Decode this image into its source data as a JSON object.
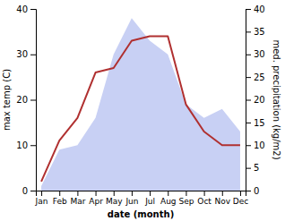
{
  "chart_data": {
    "type": "line",
    "xlabel": "date (month)",
    "ylabel": "max temp (C)",
    "y2label": "med. precipitation (kg/m2)",
    "categories": [
      "Jan",
      "Feb",
      "Mar",
      "Apr",
      "May",
      "Jun",
      "Jul",
      "Aug",
      "Sep",
      "Oct",
      "Nov",
      "Dec"
    ],
    "series": [
      {
        "type": "area",
        "axis": "y2",
        "color": "#c8d0f4",
        "values": [
          1,
          9,
          10,
          16,
          30,
          38,
          33,
          30,
          19,
          16,
          18,
          13
        ]
      },
      {
        "type": "line",
        "color": "#b03030",
        "values": [
          2,
          11,
          16,
          26,
          27,
          33,
          34,
          34,
          19,
          13,
          10,
          10
        ]
      }
    ],
    "ylim": [
      0,
      40
    ],
    "yticks": [
      0,
      10,
      20,
      30,
      40
    ],
    "y2lim": [
      0,
      40
    ],
    "y2ticks": [
      0,
      5,
      10,
      15,
      20,
      25,
      30,
      35,
      40
    ],
    "grid": false
  }
}
